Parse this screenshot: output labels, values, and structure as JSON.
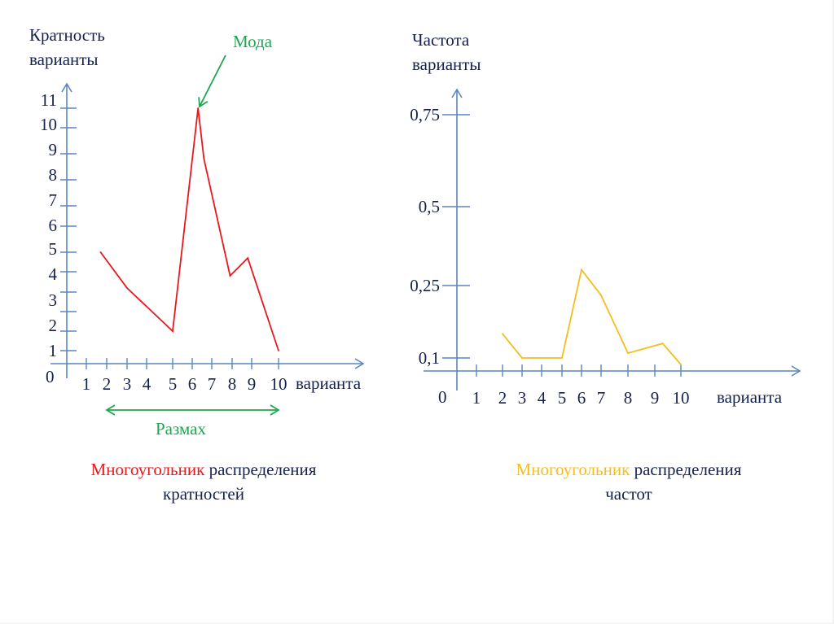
{
  "colors": {
    "axis": "#5b86c0",
    "text": "#14204e",
    "red_series": "#e8181e",
    "yellow_series": "#f7bd1f",
    "annotation_green": "#1fa650"
  },
  "chart_data": [
    {
      "type": "line",
      "title": "Многоугольник распределения кратностей",
      "title_highlight": "Многоугольник",
      "title_rest_line1": "распределения",
      "title_line2": "кратностей",
      "ylabel_line1": "Кратность",
      "ylabel_line2": "варианты",
      "xlabel": "варианта",
      "origin_label": "0",
      "x_ticks": [
        "1",
        "2",
        "3",
        "4",
        "5",
        "6",
        "7",
        "8",
        "9",
        "10"
      ],
      "y_ticks": [
        "1",
        "2",
        "3",
        "4",
        "5",
        "6",
        "7",
        "8",
        "9",
        "10",
        "11"
      ],
      "xlim": [
        0,
        10
      ],
      "ylim": [
        0,
        11
      ],
      "grid": false,
      "series": [
        {
          "name": "Кратность",
          "color": "#e8181e",
          "x": [
            1.7,
            3,
            5,
            6.3,
            6.6,
            7.9,
            8.8,
            10
          ],
          "y": [
            5,
            3.2,
            2,
            11,
            8.8,
            3.8,
            4.7,
            1
          ]
        }
      ],
      "annotations": [
        {
          "text": "Мода",
          "points_to": {
            "x": 6.3,
            "y": 11
          }
        },
        {
          "text": "Размах",
          "span_x": [
            2,
            10
          ]
        }
      ]
    },
    {
      "type": "line",
      "title": "Многоугольник распределения частот",
      "title_highlight": "Многоугольник",
      "title_rest_line1": "распределения",
      "title_line2": "частот",
      "ylabel_line1": "Частота",
      "ylabel_line2": "варианты",
      "xlabel": "варианта",
      "origin_label": "0",
      "x_ticks": [
        "1",
        "2",
        "3",
        "4",
        "5",
        "6",
        "7",
        "8",
        "9",
        "10"
      ],
      "y_ticks": [
        "0,1",
        "0,25",
        "0,5",
        "0,75"
      ],
      "xlim": [
        0,
        10
      ],
      "ylim": [
        0,
        0.8
      ],
      "grid": false,
      "series": [
        {
          "name": "Частота",
          "color": "#f7bd1f",
          "x": [
            2,
            3,
            5,
            6,
            7,
            8,
            9.3,
            10
          ],
          "y": [
            0.15,
            0.1,
            0.1,
            0.3,
            0.23,
            0.11,
            0.13,
            0.05
          ]
        }
      ],
      "annotations": []
    }
  ]
}
